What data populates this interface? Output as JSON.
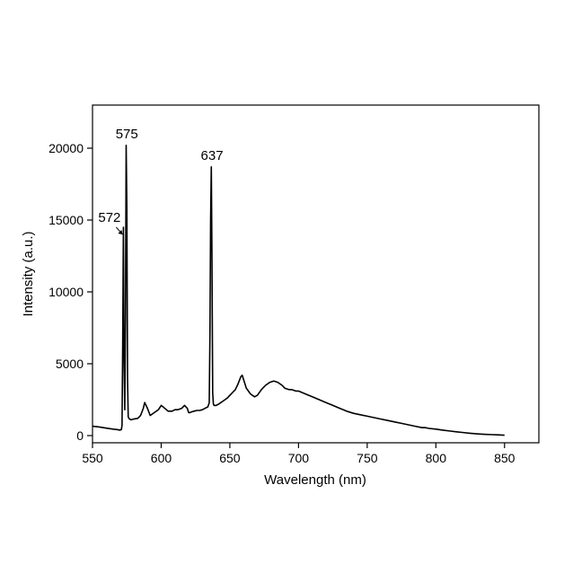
{
  "chart_data": {
    "type": "line",
    "xlabel": "Wavelength (nm)",
    "ylabel": "Intensity (a.u.)",
    "xlim": [
      550,
      875
    ],
    "ylim": [
      -500,
      23000
    ],
    "xticks": [
      550,
      600,
      650,
      700,
      750,
      800,
      850
    ],
    "yticks": [
      0,
      5000,
      10000,
      15000,
      20000
    ],
    "grid": false,
    "line_color": "#000000",
    "annotations": [
      {
        "id": "ann-575",
        "text": "575",
        "x": 575,
        "y": 20200,
        "arrow": false
      },
      {
        "id": "ann-572",
        "text": "572",
        "x": 572.5,
        "y": 14500,
        "arrow": true
      },
      {
        "id": "ann-637",
        "text": "637",
        "x": 637,
        "y": 18700,
        "arrow": false
      }
    ],
    "series": [
      {
        "x": [
          550,
          555,
          560,
          565,
          568,
          570,
          571,
          571.5,
          572,
          572.5,
          573,
          573.5,
          574,
          574.5,
          575,
          575.5,
          576,
          576.5,
          577,
          578,
          580,
          583,
          585,
          587,
          588,
          590,
          592,
          595,
          598,
          600,
          602,
          605,
          608,
          610,
          612,
          615,
          617,
          619,
          620,
          621,
          622,
          624,
          626,
          628,
          630,
          632,
          634,
          635,
          635.5,
          636,
          636.5,
          637,
          637.5,
          638,
          638.5,
          639,
          640,
          642,
          645,
          648,
          650,
          652,
          654,
          656,
          658,
          659,
          660,
          662,
          665,
          668,
          670,
          673,
          676,
          679,
          682,
          685,
          688,
          690,
          693,
          695,
          698,
          700,
          705,
          710,
          715,
          720,
          725,
          730,
          735,
          740,
          745,
          750,
          755,
          760,
          765,
          770,
          775,
          780,
          785,
          790,
          792,
          795,
          800,
          805,
          810,
          815,
          820,
          825,
          830,
          835,
          840,
          845,
          850
        ],
        "y": [
          650,
          600,
          520,
          450,
          420,
          380,
          420,
          700,
          6500,
          14500,
          5000,
          1800,
          8000,
          20200,
          16000,
          4000,
          1300,
          1200,
          1150,
          1100,
          1150,
          1200,
          1400,
          1900,
          2300,
          1900,
          1400,
          1600,
          1800,
          2100,
          1950,
          1700,
          1700,
          1800,
          1800,
          1900,
          2100,
          1900,
          1600,
          1600,
          1650,
          1700,
          1750,
          1750,
          1800,
          1900,
          2000,
          2300,
          7000,
          15000,
          18700,
          12000,
          3000,
          2200,
          2100,
          2100,
          2100,
          2200,
          2400,
          2600,
          2800,
          3000,
          3200,
          3600,
          4100,
          4200,
          3900,
          3300,
          2900,
          2700,
          2800,
          3200,
          3500,
          3700,
          3800,
          3700,
          3500,
          3300,
          3200,
          3200,
          3100,
          3100,
          2900,
          2700,
          2500,
          2300,
          2100,
          1900,
          1700,
          1550,
          1450,
          1350,
          1250,
          1150,
          1050,
          950,
          850,
          750,
          650,
          550,
          560,
          500,
          450,
          380,
          320,
          260,
          210,
          160,
          120,
          90,
          70,
          50,
          30
        ]
      }
    ]
  }
}
